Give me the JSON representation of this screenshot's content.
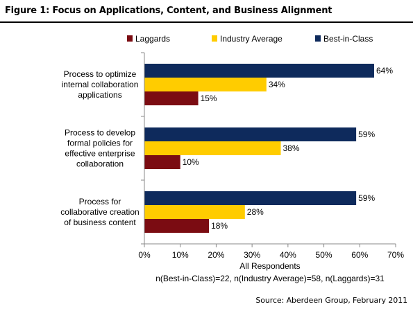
{
  "figure": {
    "title": "Figure 1: Focus on Applications, Content, and Business Alignment",
    "source": "Source: Aberdeen Group, February 2011"
  },
  "chart_data": {
    "type": "bar",
    "orientation": "horizontal",
    "categories": [
      [
        "Process to optimize",
        "internal collaboration",
        "applications"
      ],
      [
        "Process to develop",
        "formal policies for",
        "effective enterprise",
        "collaboration"
      ],
      [
        "Process for",
        "collaborative creation",
        "of business content"
      ]
    ],
    "series": [
      {
        "name": "Best-in-Class",
        "color": "#0e2a5c",
        "values": [
          64,
          59,
          59
        ],
        "labels": [
          "64%",
          "59%",
          "59%"
        ]
      },
      {
        "name": "Industry Average",
        "color": "#ffcc00",
        "values": [
          34,
          38,
          28
        ],
        "labels": [
          "34%",
          "38%",
          "28%"
        ]
      },
      {
        "name": "Laggards",
        "color": "#7b0c12",
        "values": [
          15,
          10,
          18
        ],
        "labels": [
          "15%",
          "10%",
          "18%"
        ]
      }
    ],
    "legend_order": [
      "Laggards",
      "Industry Average",
      "Best-in-Class"
    ],
    "legend_position": "top",
    "xlim": [
      0,
      70
    ],
    "xticks": [
      "0%",
      "10%",
      "20%",
      "30%",
      "40%",
      "50%",
      "60%",
      "70%"
    ],
    "xlabel": "All Respondents",
    "note": "n(Best-in-Class)=22, n(Industry Average)=58, n(Laggards)=31",
    "grid": false
  }
}
